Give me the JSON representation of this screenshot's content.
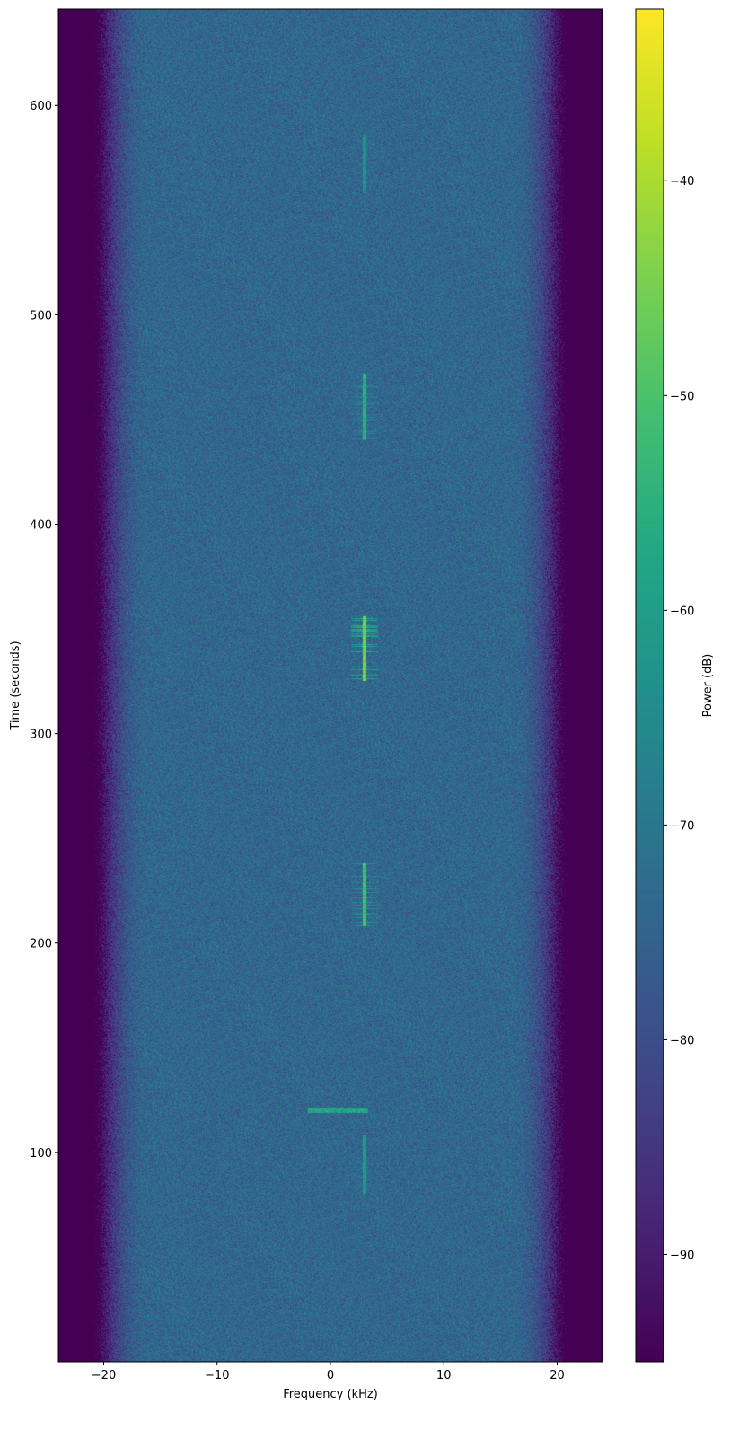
{
  "chart_data": {
    "type": "heatmap",
    "title": "",
    "xlabel": "Frequency (kHz)",
    "ylabel": "Time (seconds)",
    "colorbar_label": "Power (dB)",
    "colormap": "viridis",
    "xlim": [
      -24,
      24
    ],
    "ylim": [
      0,
      646
    ],
    "clim": [
      -95,
      -32
    ],
    "xticks": [
      -20,
      -10,
      0,
      10,
      20
    ],
    "xtick_labels": [
      "−20",
      "−10",
      "0",
      "10",
      "20"
    ],
    "yticks": [
      100,
      200,
      300,
      400,
      500,
      600
    ],
    "ytick_labels": [
      "100",
      "200",
      "300",
      "400",
      "500",
      "600"
    ],
    "cticks": [
      -40,
      -50,
      -60,
      -70,
      -80,
      -90
    ],
    "ctick_labels": [
      "−40",
      "−50",
      "−60",
      "−70",
      "−80",
      "−90"
    ],
    "noise_floor_db": -74,
    "band_edge_khz": 19,
    "signals": [
      {
        "freq_khz": 3.0,
        "t_start": 80,
        "t_end": 108,
        "peak_db": -58
      },
      {
        "freq_khz": 3.0,
        "t_start": 208,
        "t_end": 238,
        "peak_db": -48
      },
      {
        "freq_khz": 3.0,
        "t_start": 325,
        "t_end": 356,
        "peak_db": -42
      },
      {
        "freq_khz": 3.0,
        "t_start": 440,
        "t_end": 472,
        "peak_db": -52
      },
      {
        "freq_khz": 3.0,
        "t_start": 558,
        "t_end": 586,
        "peak_db": -60
      }
    ],
    "horizontal_bursts": [
      {
        "t": 120,
        "f_start": -2,
        "f_end": 3.3,
        "peak_db": -58
      }
    ]
  }
}
